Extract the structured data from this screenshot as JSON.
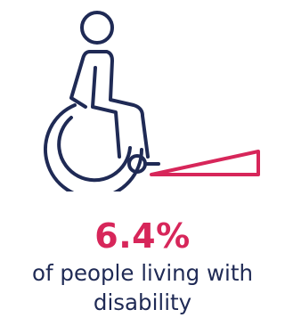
{
  "stat": {
    "value": "6.4%",
    "caption": "of people living with disability"
  },
  "icon": {
    "name": "wheelchair-user-icon",
    "ramp": "ramp-icon"
  },
  "colors": {
    "accent": "#d7265a",
    "text": "#1f2a55",
    "line": "#1f2a55"
  }
}
